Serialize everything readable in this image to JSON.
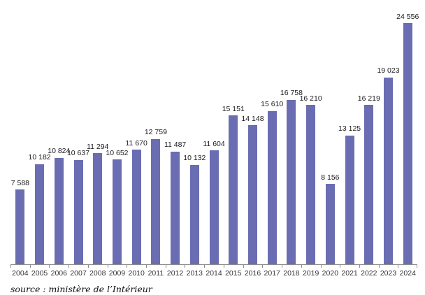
{
  "chart_data": {
    "type": "bar",
    "title": "",
    "xlabel": "",
    "ylabel": "",
    "ylim": [
      0,
      24556
    ],
    "grid": false,
    "legend_position": "none",
    "bar_color": "#6A6DB2",
    "categories": [
      "2004",
      "2005",
      "2006",
      "2007",
      "2008",
      "2009",
      "2010",
      "2011",
      "2012",
      "2013",
      "2014",
      "2015",
      "2016",
      "2017",
      "2018",
      "2019",
      "2020",
      "2021",
      "2022",
      "2023",
      "2024"
    ],
    "values": [
      7588,
      10182,
      10824,
      10637,
      11294,
      10652,
      11670,
      12759,
      11487,
      10132,
      11604,
      15151,
      14148,
      15610,
      16758,
      16210,
      8156,
      13125,
      16219,
      19023,
      24556
    ],
    "value_labels": [
      "7 588",
      "10 182",
      "10 824",
      "10 637",
      "11 294",
      "10 652",
      "11 670",
      "12 759",
      "11 487",
      "10 132",
      "11 604",
      "15 151",
      "14 148",
      "15 610",
      "16 758",
      "16 210",
      "8 156",
      "13 125",
      "16 219",
      "19 023",
      "24 556"
    ]
  },
  "source_text": "source : ministère de l’Intérieur"
}
